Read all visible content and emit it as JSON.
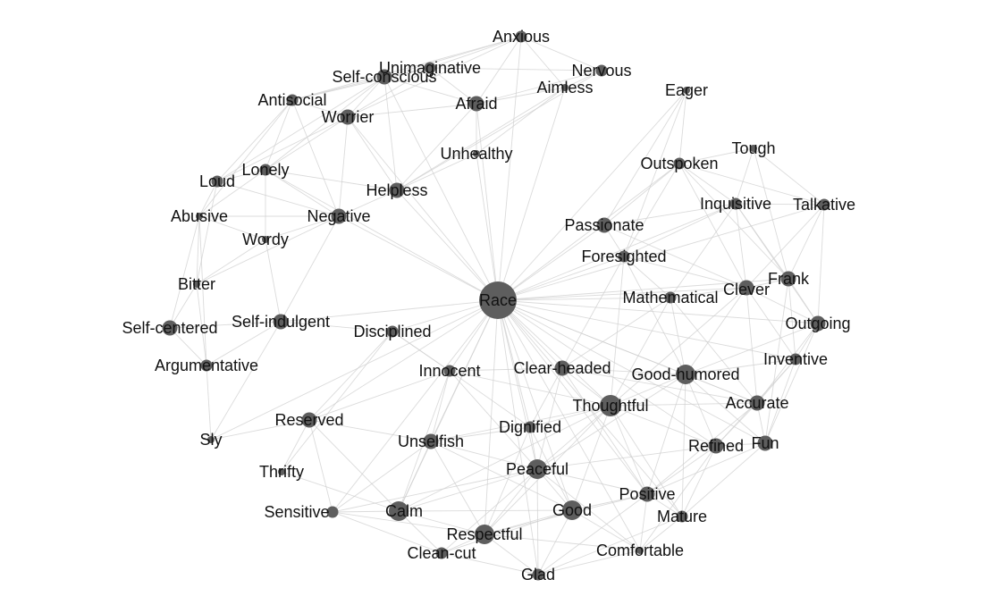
{
  "graph": {
    "nodes": [
      {
        "id": "Race",
        "label": "Race",
        "size": 7
      },
      {
        "id": "Anxious",
        "label": "Anxious",
        "size": 2
      },
      {
        "id": "Unimaginative",
        "label": "Unimaginative",
        "size": 2
      },
      {
        "id": "Nervous",
        "label": "Nervous",
        "size": 2
      },
      {
        "id": "Self-conscious",
        "label": "Self-conscious",
        "size": 3
      },
      {
        "id": "Aimless",
        "label": "Aimless",
        "size": 1
      },
      {
        "id": "Eager",
        "label": "Eager",
        "size": 1
      },
      {
        "id": "Antisocial",
        "label": "Antisocial",
        "size": 2
      },
      {
        "id": "Afraid",
        "label": "Afraid",
        "size": 3
      },
      {
        "id": "Worrier",
        "label": "Worrier",
        "size": 3
      },
      {
        "id": "Unhealthy",
        "label": "Unhealthy",
        "size": 1
      },
      {
        "id": "Tough",
        "label": "Tough",
        "size": 1
      },
      {
        "id": "Outspoken",
        "label": "Outspoken",
        "size": 2
      },
      {
        "id": "Loud",
        "label": "Loud",
        "size": 2
      },
      {
        "id": "Lonely",
        "label": "Lonely",
        "size": 2
      },
      {
        "id": "Helpless",
        "label": "Helpless",
        "size": 3
      },
      {
        "id": "Inquisitive",
        "label": "Inquisitive",
        "size": 2
      },
      {
        "id": "Talkative",
        "label": "Talkative",
        "size": 2
      },
      {
        "id": "Abusive",
        "label": "Abusive",
        "size": 1
      },
      {
        "id": "Negative",
        "label": "Negative",
        "size": 3
      },
      {
        "id": "Passionate",
        "label": "Passionate",
        "size": 3
      },
      {
        "id": "Wordy",
        "label": "Wordy",
        "size": 1
      },
      {
        "id": "Foresighted",
        "label": "Foresighted",
        "size": 2
      },
      {
        "id": "Bitter",
        "label": "Bitter",
        "size": 1
      },
      {
        "id": "Frank",
        "label": "Frank",
        "size": 3
      },
      {
        "id": "Clever",
        "label": "Clever",
        "size": 3
      },
      {
        "id": "Mathematical",
        "label": "Mathematical",
        "size": 2
      },
      {
        "id": "Self-centered",
        "label": "Self-centered",
        "size": 3
      },
      {
        "id": "Self-indulgent",
        "label": "Self-indulgent",
        "size": 3
      },
      {
        "id": "Disciplined",
        "label": "Disciplined",
        "size": 2
      },
      {
        "id": "Outgoing",
        "label": "Outgoing",
        "size": 3
      },
      {
        "id": "Argumentative",
        "label": "Argumentative",
        "size": 2
      },
      {
        "id": "Inventive",
        "label": "Inventive",
        "size": 2
      },
      {
        "id": "Innocent",
        "label": "Innocent",
        "size": 2
      },
      {
        "id": "Clear-headed",
        "label": "Clear-headed",
        "size": 3
      },
      {
        "id": "Good-humored",
        "label": "Good-humored",
        "size": 4
      },
      {
        "id": "Accurate",
        "label": "Accurate",
        "size": 3
      },
      {
        "id": "Thoughtful",
        "label": "Thoughtful",
        "size": 5
      },
      {
        "id": "Reserved",
        "label": "Reserved",
        "size": 3
      },
      {
        "id": "Dignified",
        "label": "Dignified",
        "size": 2
      },
      {
        "id": "Sly",
        "label": "Sly",
        "size": 1
      },
      {
        "id": "Unselfish",
        "label": "Unselfish",
        "size": 3
      },
      {
        "id": "Refined",
        "label": "Refined",
        "size": 3
      },
      {
        "id": "Fun",
        "label": "Fun",
        "size": 3
      },
      {
        "id": "Thrifty",
        "label": "Thrifty",
        "size": 1
      },
      {
        "id": "Peaceful",
        "label": "Peaceful",
        "size": 4
      },
      {
        "id": "Positive",
        "label": "Positive",
        "size": 3
      },
      {
        "id": "Sensitive",
        "label": "Sensitive",
        "size": 2
      },
      {
        "id": "Calm",
        "label": "Calm",
        "size": 4
      },
      {
        "id": "Good",
        "label": "Good",
        "size": 4
      },
      {
        "id": "Mature",
        "label": "Mature",
        "size": 2
      },
      {
        "id": "Respectful",
        "label": "Respectful",
        "size": 4
      },
      {
        "id": "Clean-cut",
        "label": "Clean-cut",
        "size": 2
      },
      {
        "id": "Comfortable",
        "label": "Comfortable",
        "size": 1
      },
      {
        "id": "Glad",
        "label": "Glad",
        "size": 2
      }
    ],
    "edges": [
      [
        "Race",
        "Anxious"
      ],
      [
        "Race",
        "Afraid"
      ],
      [
        "Race",
        "Unhealthy"
      ],
      [
        "Race",
        "Helpless"
      ],
      [
        "Race",
        "Worrier"
      ],
      [
        "Race",
        "Negative"
      ],
      [
        "Race",
        "Self-conscious"
      ],
      [
        "Race",
        "Aimless"
      ],
      [
        "Race",
        "Eager"
      ],
      [
        "Race",
        "Outspoken"
      ],
      [
        "Race",
        "Passionate"
      ],
      [
        "Race",
        "Foresighted"
      ],
      [
        "Race",
        "Inquisitive"
      ],
      [
        "Race",
        "Mathematical"
      ],
      [
        "Race",
        "Clever"
      ],
      [
        "Race",
        "Frank"
      ],
      [
        "Race",
        "Outgoing"
      ],
      [
        "Race",
        "Disciplined"
      ],
      [
        "Race",
        "Innocent"
      ],
      [
        "Race",
        "Clear-headed"
      ],
      [
        "Race",
        "Good-humored"
      ],
      [
        "Race",
        "Thoughtful"
      ],
      [
        "Race",
        "Dignified"
      ],
      [
        "Race",
        "Unselfish"
      ],
      [
        "Race",
        "Peaceful"
      ],
      [
        "Race",
        "Good"
      ],
      [
        "Race",
        "Positive"
      ],
      [
        "Race",
        "Respectful"
      ],
      [
        "Race",
        "Calm"
      ],
      [
        "Race",
        "Reserved"
      ],
      [
        "Race",
        "Sly"
      ],
      [
        "Race",
        "Self-indulgent"
      ],
      [
        "Race",
        "Accurate"
      ],
      [
        "Race",
        "Refined"
      ],
      [
        "Race",
        "Fun"
      ],
      [
        "Race",
        "Mature"
      ],
      [
        "Race",
        "Inventive"
      ],
      [
        "Race",
        "Talkative"
      ],
      [
        "Race",
        "Sensitive"
      ],
      [
        "Race",
        "Glad"
      ],
      [
        "Race",
        "Comfortable"
      ],
      [
        "Race",
        "Lonely"
      ],
      [
        "Anxious",
        "Nervous"
      ],
      [
        "Anxious",
        "Afraid"
      ],
      [
        "Anxious",
        "Self-conscious"
      ],
      [
        "Anxious",
        "Worrier"
      ],
      [
        "Anxious",
        "Unimaginative"
      ],
      [
        "Anxious",
        "Aimless"
      ],
      [
        "Anxious",
        "Antisocial"
      ],
      [
        "Nervous",
        "Afraid"
      ],
      [
        "Nervous",
        "Aimless"
      ],
      [
        "Nervous",
        "Unimaginative"
      ],
      [
        "Nervous",
        "Helpless"
      ],
      [
        "Unimaginative",
        "Self-conscious"
      ],
      [
        "Unimaginative",
        "Worrier"
      ],
      [
        "Unimaginative",
        "Afraid"
      ],
      [
        "Unimaginative",
        "Antisocial"
      ],
      [
        "Self-conscious",
        "Worrier"
      ],
      [
        "Self-conscious",
        "Afraid"
      ],
      [
        "Self-conscious",
        "Antisocial"
      ],
      [
        "Self-conscious",
        "Lonely"
      ],
      [
        "Self-conscious",
        "Loud"
      ],
      [
        "Self-conscious",
        "Helpless"
      ],
      [
        "Antisocial",
        "Worrier"
      ],
      [
        "Antisocial",
        "Lonely"
      ],
      [
        "Antisocial",
        "Loud"
      ],
      [
        "Antisocial",
        "Abusive"
      ],
      [
        "Antisocial",
        "Negative"
      ],
      [
        "Afraid",
        "Worrier"
      ],
      [
        "Afraid",
        "Helpless"
      ],
      [
        "Afraid",
        "Unhealthy"
      ],
      [
        "Afraid",
        "Aimless"
      ],
      [
        "Worrier",
        "Lonely"
      ],
      [
        "Worrier",
        "Helpless"
      ],
      [
        "Worrier",
        "Negative"
      ],
      [
        "Worrier",
        "Loud"
      ],
      [
        "Aimless",
        "Unhealthy"
      ],
      [
        "Aimless",
        "Helpless"
      ],
      [
        "Unhealthy",
        "Helpless"
      ],
      [
        "Loud",
        "Lonely"
      ],
      [
        "Loud",
        "Abusive"
      ],
      [
        "Loud",
        "Bitter"
      ],
      [
        "Loud",
        "Negative"
      ],
      [
        "Lonely",
        "Negative"
      ],
      [
        "Lonely",
        "Helpless"
      ],
      [
        "Lonely",
        "Wordy"
      ],
      [
        "Lonely",
        "Abusive"
      ],
      [
        "Helpless",
        "Negative"
      ],
      [
        "Negative",
        "Wordy"
      ],
      [
        "Negative",
        "Abusive"
      ],
      [
        "Negative",
        "Self-indulgent"
      ],
      [
        "Negative",
        "Bitter"
      ],
      [
        "Abusive",
        "Bitter"
      ],
      [
        "Abusive",
        "Wordy"
      ],
      [
        "Abusive",
        "Self-centered"
      ],
      [
        "Abusive",
        "Argumentative"
      ],
      [
        "Bitter",
        "Self-centered"
      ],
      [
        "Bitter",
        "Argumentative"
      ],
      [
        "Bitter",
        "Wordy"
      ],
      [
        "Self-centered",
        "Argumentative"
      ],
      [
        "Self-centered",
        "Self-indulgent"
      ],
      [
        "Argumentative",
        "Sly"
      ],
      [
        "Argumentative",
        "Self-indulgent"
      ],
      [
        "Wordy",
        "Self-indulgent"
      ],
      [
        "Self-indulgent",
        "Sly"
      ],
      [
        "Self-indulgent",
        "Disciplined"
      ],
      [
        "Eager",
        "Outspoken"
      ],
      [
        "Eager",
        "Passionate"
      ],
      [
        "Eager",
        "Foresighted"
      ],
      [
        "Tough",
        "Outspoken"
      ],
      [
        "Tough",
        "Inquisitive"
      ],
      [
        "Tough",
        "Frank"
      ],
      [
        "Tough",
        "Talkative"
      ],
      [
        "Outspoken",
        "Inquisitive"
      ],
      [
        "Outspoken",
        "Passionate"
      ],
      [
        "Outspoken",
        "Talkative"
      ],
      [
        "Outspoken",
        "Frank"
      ],
      [
        "Outspoken",
        "Clever"
      ],
      [
        "Outspoken",
        "Foresighted"
      ],
      [
        "Inquisitive",
        "Talkative"
      ],
      [
        "Inquisitive",
        "Clever"
      ],
      [
        "Inquisitive",
        "Frank"
      ],
      [
        "Inquisitive",
        "Passionate"
      ],
      [
        "Inquisitive",
        "Foresighted"
      ],
      [
        "Inquisitive",
        "Mathematical"
      ],
      [
        "Inquisitive",
        "Outgoing"
      ],
      [
        "Talkative",
        "Frank"
      ],
      [
        "Talkative",
        "Outgoing"
      ],
      [
        "Talkative",
        "Clever"
      ],
      [
        "Passionate",
        "Foresighted"
      ],
      [
        "Passionate",
        "Clever"
      ],
      [
        "Foresighted",
        "Mathematical"
      ],
      [
        "Foresighted",
        "Clever"
      ],
      [
        "Foresighted",
        "Clear-headed"
      ],
      [
        "Foresighted",
        "Thoughtful"
      ],
      [
        "Foresighted",
        "Good-humored"
      ],
      [
        "Mathematical",
        "Clever"
      ],
      [
        "Mathematical",
        "Accurate"
      ],
      [
        "Mathematical",
        "Clear-headed"
      ],
      [
        "Mathematical",
        "Good-humored"
      ],
      [
        "Mathematical",
        "Thoughtful"
      ],
      [
        "Clever",
        "Frank"
      ],
      [
        "Clever",
        "Outgoing"
      ],
      [
        "Clever",
        "Inventive"
      ],
      [
        "Clever",
        "Good-humored"
      ],
      [
        "Clever",
        "Accurate"
      ],
      [
        "Clever",
        "Thoughtful"
      ],
      [
        "Frank",
        "Outgoing"
      ],
      [
        "Frank",
        "Inventive"
      ],
      [
        "Frank",
        "Fun"
      ],
      [
        "Outgoing",
        "Inventive"
      ],
      [
        "Outgoing",
        "Good-humored"
      ],
      [
        "Outgoing",
        "Fun"
      ],
      [
        "Outgoing",
        "Accurate"
      ],
      [
        "Inventive",
        "Accurate"
      ],
      [
        "Inventive",
        "Fun"
      ],
      [
        "Inventive",
        "Good-humored"
      ],
      [
        "Inventive",
        "Refined"
      ],
      [
        "Clear-headed",
        "Good-humored"
      ],
      [
        "Clear-headed",
        "Thoughtful"
      ],
      [
        "Clear-headed",
        "Innocent"
      ],
      [
        "Clear-headed",
        "Dignified"
      ],
      [
        "Clear-headed",
        "Peaceful"
      ],
      [
        "Clear-headed",
        "Positive"
      ],
      [
        "Clear-headed",
        "Accurate"
      ],
      [
        "Good-humored",
        "Thoughtful"
      ],
      [
        "Good-humored",
        "Accurate"
      ],
      [
        "Good-humored",
        "Refined"
      ],
      [
        "Good-humored",
        "Fun"
      ],
      [
        "Good-humored",
        "Positive"
      ],
      [
        "Good-humored",
        "Peaceful"
      ],
      [
        "Good-humored",
        "Mature"
      ],
      [
        "Accurate",
        "Refined"
      ],
      [
        "Accurate",
        "Fun"
      ],
      [
        "Accurate",
        "Thoughtful"
      ],
      [
        "Accurate",
        "Positive"
      ],
      [
        "Thoughtful",
        "Dignified"
      ],
      [
        "Thoughtful",
        "Peaceful"
      ],
      [
        "Thoughtful",
        "Good"
      ],
      [
        "Thoughtful",
        "Positive"
      ],
      [
        "Thoughtful",
        "Respectful"
      ],
      [
        "Thoughtful",
        "Refined"
      ],
      [
        "Thoughtful",
        "Calm"
      ],
      [
        "Thoughtful",
        "Unselfish"
      ],
      [
        "Thoughtful",
        "Mature"
      ],
      [
        "Thoughtful",
        "Innocent"
      ],
      [
        "Innocent",
        "Dignified"
      ],
      [
        "Innocent",
        "Unselfish"
      ],
      [
        "Innocent",
        "Peaceful"
      ],
      [
        "Innocent",
        "Reserved"
      ],
      [
        "Innocent",
        "Calm"
      ],
      [
        "Innocent",
        "Disciplined"
      ],
      [
        "Disciplined",
        "Reserved"
      ],
      [
        "Disciplined",
        "Thrifty"
      ],
      [
        "Disciplined",
        "Innocent"
      ],
      [
        "Reserved",
        "Sly"
      ],
      [
        "Reserved",
        "Thrifty"
      ],
      [
        "Reserved",
        "Sensitive"
      ],
      [
        "Reserved",
        "Calm"
      ],
      [
        "Reserved",
        "Unselfish"
      ],
      [
        "Dignified",
        "Unselfish"
      ],
      [
        "Dignified",
        "Peaceful"
      ],
      [
        "Dignified",
        "Respectful"
      ],
      [
        "Dignified",
        "Good"
      ],
      [
        "Unselfish",
        "Peaceful"
      ],
      [
        "Unselfish",
        "Calm"
      ],
      [
        "Unselfish",
        "Respectful"
      ],
      [
        "Unselfish",
        "Sensitive"
      ],
      [
        "Unselfish",
        "Good"
      ],
      [
        "Refined",
        "Fun"
      ],
      [
        "Refined",
        "Positive"
      ],
      [
        "Refined",
        "Mature"
      ],
      [
        "Refined",
        "Comfortable"
      ],
      [
        "Refined",
        "Peaceful"
      ],
      [
        "Fun",
        "Positive"
      ],
      [
        "Fun",
        "Mature"
      ],
      [
        "Peaceful",
        "Good"
      ],
      [
        "Peaceful",
        "Calm"
      ],
      [
        "Peaceful",
        "Respectful"
      ],
      [
        "Peaceful",
        "Positive"
      ],
      [
        "Peaceful",
        "Glad"
      ],
      [
        "Peaceful",
        "Comfortable"
      ],
      [
        "Peaceful",
        "Clean-cut"
      ],
      [
        "Peaceful",
        "Sensitive"
      ],
      [
        "Positive",
        "Good"
      ],
      [
        "Positive",
        "Mature"
      ],
      [
        "Positive",
        "Comfortable"
      ],
      [
        "Positive",
        "Respectful"
      ],
      [
        "Positive",
        "Glad"
      ],
      [
        "Good",
        "Respectful"
      ],
      [
        "Good",
        "Calm"
      ],
      [
        "Good",
        "Glad"
      ],
      [
        "Good",
        "Comfortable"
      ],
      [
        "Good",
        "Clean-cut"
      ],
      [
        "Calm",
        "Sensitive"
      ],
      [
        "Calm",
        "Respectful"
      ],
      [
        "Calm",
        "Clean-cut"
      ],
      [
        "Calm",
        "Thrifty"
      ],
      [
        "Respectful",
        "Clean-cut"
      ],
      [
        "Respectful",
        "Glad"
      ],
      [
        "Respectful",
        "Comfortable"
      ],
      [
        "Respectful",
        "Sensitive"
      ],
      [
        "Mature",
        "Comfortable"
      ],
      [
        "Mature",
        "Glad"
      ],
      [
        "Comfortable",
        "Glad"
      ],
      [
        "Clean-cut",
        "Glad"
      ],
      [
        "Sensitive",
        "Clean-cut"
      ]
    ]
  }
}
